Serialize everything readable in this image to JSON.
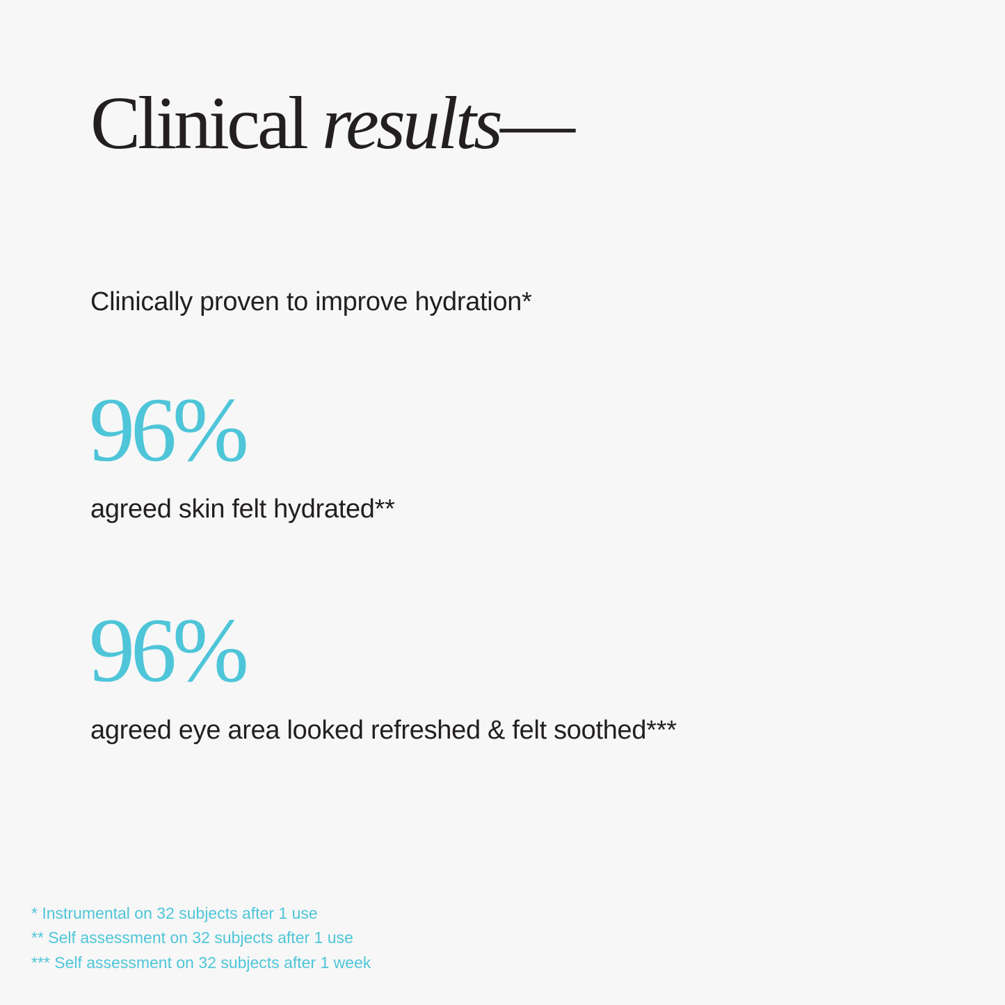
{
  "title": {
    "regular": "Clinical",
    "italic": "results",
    "dash": "—"
  },
  "intro": "Clinically proven to improve hydration*",
  "stats": [
    {
      "value": "96%",
      "label": "agreed skin felt hydrated**"
    },
    {
      "value": "96%",
      "label": "agreed eye area looked refreshed & felt soothed***"
    }
  ],
  "footnotes": [
    "* Instrumental on 32 subjects after 1 use",
    "** Self assessment on 32 subjects after 1 use",
    "*** Self assessment on 32 subjects after 1 week"
  ],
  "colors": {
    "accent": "#4ec5d8",
    "text": "#231f20",
    "background": "#f7f7f7"
  }
}
